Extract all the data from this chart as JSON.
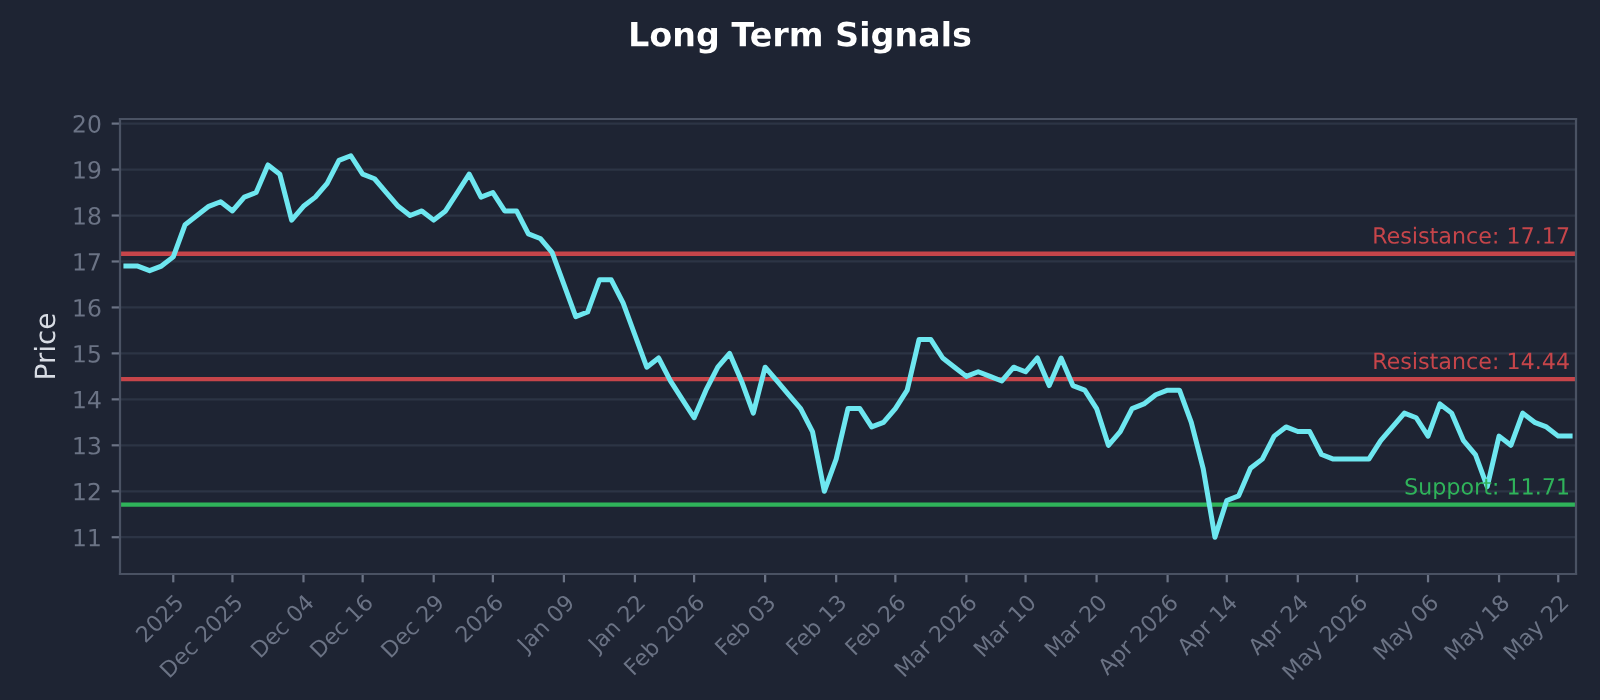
{
  "chart_data": {
    "type": "line",
    "title": "Long Term Signals",
    "ylabel": "Price",
    "categories": [
      null,
      null,
      null,
      null,
      "2025",
      null,
      null,
      null,
      null,
      "Dec 2025",
      null,
      null,
      null,
      null,
      null,
      "Dec 04",
      null,
      null,
      null,
      null,
      "Dec 16",
      null,
      null,
      null,
      null,
      null,
      "Dec 29",
      null,
      null,
      null,
      null,
      "2026",
      null,
      null,
      null,
      null,
      null,
      "Jan 09",
      null,
      null,
      null,
      null,
      null,
      "Jan 22",
      null,
      null,
      null,
      null,
      "Feb 2026",
      null,
      null,
      null,
      null,
      null,
      "Feb 03",
      null,
      null,
      null,
      null,
      null,
      "Feb 13",
      null,
      null,
      null,
      null,
      "Feb 26",
      null,
      null,
      null,
      null,
      null,
      "Mar 2026",
      null,
      null,
      null,
      null,
      "Mar 10",
      null,
      null,
      null,
      null,
      null,
      "Mar 20",
      null,
      null,
      null,
      null,
      null,
      "Apr 2026",
      null,
      null,
      null,
      null,
      "Apr 14",
      null,
      null,
      null,
      null,
      null,
      "Apr 24",
      null,
      null,
      null,
      null,
      "May 2026",
      null,
      null,
      null,
      null,
      null,
      "May 06",
      null,
      null,
      null,
      null,
      null,
      "May 18",
      null,
      null,
      null,
      null,
      "May 22",
      null
    ],
    "series": [
      {
        "color": "#6ee7f0",
        "values": [
          16.9,
          16.9,
          16.8,
          16.9,
          17.1,
          17.8,
          18.0,
          18.2,
          18.3,
          18.1,
          18.4,
          18.5,
          19.1,
          18.9,
          17.9,
          18.2,
          18.4,
          18.7,
          19.2,
          19.3,
          18.9,
          18.8,
          18.5,
          18.2,
          18.0,
          18.1,
          17.9,
          18.1,
          18.5,
          18.9,
          18.4,
          18.5,
          18.1,
          18.1,
          17.6,
          17.5,
          17.2,
          16.5,
          15.8,
          15.9,
          16.6,
          16.6,
          16.1,
          15.4,
          14.7,
          14.9,
          14.4,
          14.0,
          13.6,
          14.2,
          14.7,
          15.0,
          14.4,
          13.7,
          14.7,
          14.4,
          14.1,
          13.8,
          13.3,
          12.0,
          12.7,
          13.8,
          13.8,
          13.4,
          13.5,
          13.8,
          14.2,
          15.3,
          15.3,
          14.9,
          14.7,
          14.5,
          14.6,
          14.5,
          14.4,
          14.7,
          14.6,
          14.9,
          14.3,
          14.9,
          14.3,
          14.2,
          13.8,
          13.0,
          13.3,
          13.8,
          13.9,
          14.1,
          14.2,
          14.2,
          13.5,
          12.5,
          11.0,
          11.8,
          11.9,
          12.5,
          12.7,
          13.2,
          13.4,
          13.3,
          13.3,
          12.8,
          12.7,
          12.7,
          12.7,
          12.7,
          13.1,
          13.4,
          13.7,
          13.6,
          13.2,
          13.9,
          13.7,
          13.1,
          12.8,
          12.1,
          13.2,
          13.0,
          13.7,
          13.5,
          13.4,
          13.2,
          13.2
        ]
      }
    ],
    "ylim": [
      10.2,
      20.1
    ],
    "yticks": [
      11,
      12,
      13,
      14,
      15,
      16,
      17,
      18,
      19,
      20
    ],
    "grid": "y",
    "ref_lines": [
      {
        "axis": "y",
        "value": 17.17,
        "label": "Resistance: 17.17",
        "color": "#c6454a"
      },
      {
        "axis": "y",
        "value": 14.44,
        "label": "Resistance: 14.44",
        "color": "#c6454a"
      },
      {
        "axis": "y",
        "value": 11.71,
        "label": "Support: 11.71",
        "color": "#2fb35a"
      }
    ]
  }
}
